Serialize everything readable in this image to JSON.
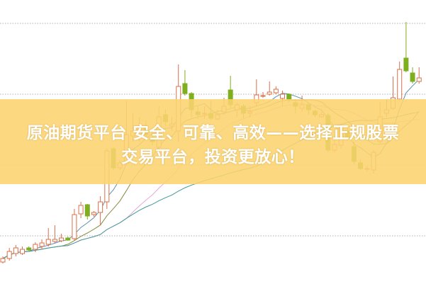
{
  "headline": {
    "line1": "原油期货平台 安全、可靠、高效——选择正规股票",
    "line2": "交易平台，投资更放心！"
  },
  "colors": {
    "up": "#d9704a",
    "down": "#7fae1e",
    "banner": "#fcd470",
    "grid": "#b0b0b0",
    "ma_short": "#5a8fb0",
    "ma_mid": "#8a8a40",
    "ma_long": "#e8a8d8",
    "ma_longest": "#3f9a9a"
  },
  "chart_data": {
    "type": "candlestick",
    "grid": "horizontal dotted",
    "ylim": [
      0,
      40
    ],
    "candles": [
      [
        3.0,
        3.8,
        2.8,
        3.5
      ],
      [
        3.5,
        5.0,
        3.2,
        4.5
      ],
      [
        4.2,
        5.4,
        3.8,
        5.0
      ],
      [
        4.2,
        5.2,
        4.0,
        4.8
      ],
      [
        5.0,
        5.2,
        4.5,
        4.7
      ],
      [
        4.8,
        5.8,
        4.4,
        5.5
      ],
      [
        5.2,
        6.2,
        4.8,
        5.7
      ],
      [
        5.5,
        7.8,
        5.2,
        6.2
      ],
      [
        5.9,
        8.2,
        5.7,
        6.2
      ],
      [
        6.0,
        7.0,
        5.8,
        6.4
      ],
      [
        6.4,
        6.6,
        6.0,
        6.1
      ],
      [
        6.3,
        10.5,
        6.0,
        9.7
      ],
      [
        9.8,
        11.5,
        9.2,
        11.0
      ],
      [
        11.1,
        11.2,
        9.0,
        9.5
      ],
      [
        9.7,
        10.2,
        9.4,
        10.0
      ],
      [
        10.0,
        12.3,
        8.2,
        11.5
      ],
      [
        11.5,
        19.0,
        10.5,
        18.7
      ],
      [
        19.0,
        19.2,
        16.0,
        16.3
      ],
      [
        16.3,
        17.4,
        16.0,
        17.0
      ],
      [
        17.0,
        25.7,
        16.8,
        21.0
      ],
      [
        20.8,
        24.0,
        20.0,
        21.5
      ],
      [
        21.0,
        23.5,
        20.0,
        22.0
      ],
      [
        22.2,
        23.0,
        20.5,
        21.0
      ],
      [
        20.5,
        21.5,
        19.5,
        20.0
      ],
      [
        19.2,
        25.0,
        19.0,
        23.5
      ],
      [
        23.8,
        24.5,
        22.2,
        22.8
      ],
      [
        22.2,
        23.5,
        21.5,
        22.5
      ],
      [
        21.5,
        30.9,
        20.0,
        27.8
      ],
      [
        28.2,
        30.1,
        26.5,
        26.8
      ],
      [
        26.8,
        27.0,
        23.5,
        24.5
      ],
      [
        24.2,
        25.0,
        23.2,
        23.8
      ],
      [
        24.0,
        25.0,
        23.2,
        24.0
      ],
      [
        24.0,
        25.8,
        23.0,
        23.3
      ],
      [
        23.2,
        24.5,
        23.0,
        23.8
      ],
      [
        24.2,
        26.2,
        23.8,
        25.0
      ],
      [
        27.3,
        29.3,
        24.8,
        25.2
      ],
      [
        24.5,
        25.5,
        23.5,
        25.2
      ],
      [
        25.0,
        25.3,
        23.3,
        24.0
      ],
      [
        24.0,
        25.0,
        23.4,
        24.2
      ],
      [
        25.5,
        28.8,
        25.0,
        26.6
      ],
      [
        26.5,
        27.0,
        26.2,
        26.5
      ],
      [
        26.7,
        28.5,
        26.5,
        27.0
      ],
      [
        26.9,
        27.8,
        26.7,
        27.4
      ],
      [
        26.1,
        27.2,
        25.0,
        26.7
      ],
      [
        26.7,
        26.8,
        25.5,
        26.0
      ],
      [
        25.5,
        26.0,
        24.0,
        25.0
      ],
      [
        24.7,
        26.5,
        24.2,
        25.2
      ],
      [
        25.2,
        25.5,
        23.8,
        24.5
      ],
      [
        24.3,
        24.5,
        23.5,
        23.8
      ],
      [
        23.5,
        24.2,
        23.4,
        23.8
      ],
      [
        23.7,
        24.0,
        18.5,
        18.8
      ],
      [
        18.8,
        20.2,
        18.5,
        19.6
      ],
      [
        19.5,
        22.5,
        19.0,
        22.0
      ],
      [
        21.5,
        22.0,
        20.2,
        20.7
      ],
      [
        19.3,
        20.0,
        16.8,
        17.2
      ],
      [
        17.0,
        17.5,
        16.0,
        16.2
      ],
      [
        16.2,
        16.6,
        15.8,
        16.2
      ],
      [
        16.0,
        18.8,
        15.5,
        18.5
      ],
      [
        20.0,
        25.5,
        19.8,
        23.5
      ],
      [
        24.0,
        26.0,
        23.5,
        24.5
      ],
      [
        24.7,
        29.2,
        24.5,
        26.2
      ],
      [
        26.0,
        31.3,
        25.7,
        30.2
      ],
      [
        31.8,
        36.9,
        29.8,
        30.0
      ],
      [
        29.7,
        30.5,
        28.2,
        28.5
      ],
      [
        28.5,
        30.5,
        28.2,
        29.0
      ]
    ],
    "gridlines": [
      36.7,
      26.7,
      16.7,
      6.7
    ]
  }
}
